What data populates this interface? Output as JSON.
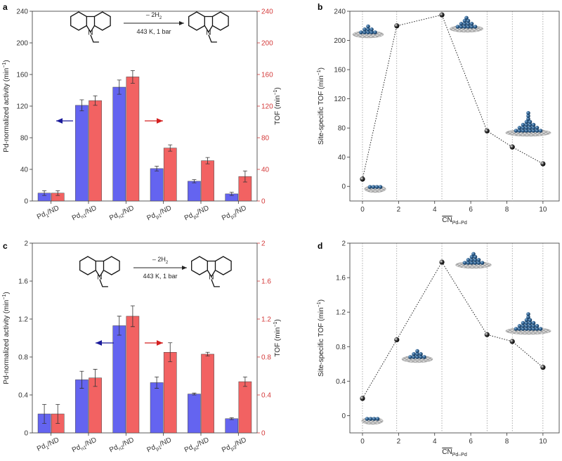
{
  "colors": {
    "blue": "#6464f0",
    "red": "#f26262",
    "red_axis": "#d43a3a",
    "arrow_blue": "#1a1a9a",
    "arrow_red": "#d42020",
    "cluster": "#2a5a88",
    "graphene": "#a8a8a8"
  },
  "chart_data": [
    {
      "id": "a",
      "panel_label": "a",
      "type": "bar",
      "categories": [
        "Pd1/ND",
        "Pdn1/ND",
        "Pdn2/ND",
        "Pdp1/ND",
        "Pdp2/ND",
        "Pdp3/ND"
      ],
      "category_labels": [
        {
          "base": "Pd",
          "sub": "1",
          "suffix": "/ND"
        },
        {
          "base": "Pd",
          "sub": "n1",
          "suffix": "/ND"
        },
        {
          "base": "Pd",
          "sub": "n2",
          "suffix": "/ND"
        },
        {
          "base": "Pd",
          "sub": "p1",
          "suffix": "/ND"
        },
        {
          "base": "Pd",
          "sub": "p2",
          "suffix": "/ND"
        },
        {
          "base": "Pd",
          "sub": "p3",
          "suffix": "/ND"
        }
      ],
      "series": [
        {
          "axis": "left",
          "color": "#6464f0",
          "values": [
            10,
            121,
            144,
            41,
            25,
            9
          ],
          "errors": [
            3,
            7,
            9,
            3,
            2,
            2
          ]
        },
        {
          "axis": "right",
          "color": "#f26262",
          "values": [
            10,
            127,
            157,
            67,
            51,
            31
          ],
          "errors": [
            3,
            6,
            8,
            4,
            4,
            7
          ]
        }
      ],
      "ylim": [
        0,
        240
      ],
      "yticks": [
        "0",
        "40",
        "80",
        "120",
        "160",
        "200",
        "240"
      ],
      "ylabel": {
        "text": "Pd-normalized activity (min",
        "sup": "−1",
        "close": ")"
      },
      "y2label": {
        "text": "TOF (min",
        "sup": "−1",
        "close": ")"
      },
      "reaction": {
        "reagent": "– 2H",
        "reagent_sub": "2",
        "conditions": "443 K, 1 bar"
      }
    },
    {
      "id": "b",
      "panel_label": "b",
      "type": "scatter",
      "x": [
        0,
        1.9,
        4.4,
        6.9,
        8.3,
        10
      ],
      "y": [
        10,
        220,
        235,
        76,
        54,
        31
      ],
      "xlim": [
        -0.7,
        10.9
      ],
      "ylim": [
        -20,
        240
      ],
      "xticks": [
        "0",
        "2",
        "4",
        "6",
        "8",
        "10"
      ],
      "yticks": [
        "0",
        "40",
        "80",
        "120",
        "160",
        "200",
        "240"
      ],
      "ylabel": {
        "text": "Site-specific TOF (min",
        "sup": "−1",
        "close": ")"
      },
      "xlabel": {
        "text": "CN",
        "sub": "Pd–Pd"
      }
    },
    {
      "id": "c",
      "panel_label": "c",
      "type": "bar",
      "categories": [
        "Pd1/ND",
        "Pdn1/ND",
        "Pdn2/ND",
        "Pdp1/ND",
        "Pdp2/ND",
        "Pdp3/ND"
      ],
      "category_labels": [
        {
          "base": "Pd",
          "sub": "1",
          "suffix": "/ND"
        },
        {
          "base": "Pd",
          "sub": "n1",
          "suffix": "/ND"
        },
        {
          "base": "Pd",
          "sub": "n2",
          "suffix": "/ND"
        },
        {
          "base": "Pd",
          "sub": "p1",
          "suffix": "/ND"
        },
        {
          "base": "Pd",
          "sub": "p2",
          "suffix": "/ND"
        },
        {
          "base": "Pd",
          "sub": "p3",
          "suffix": "/ND"
        }
      ],
      "series": [
        {
          "axis": "left",
          "color": "#6464f0",
          "values": [
            0.2,
            0.56,
            1.13,
            0.53,
            0.41,
            0.15
          ],
          "errors": [
            0.1,
            0.09,
            0.1,
            0.06,
            0.01,
            0.01
          ]
        },
        {
          "axis": "right",
          "color": "#f26262",
          "values": [
            0.2,
            0.58,
            1.23,
            0.85,
            0.83,
            0.54
          ],
          "errors": [
            0.1,
            0.09,
            0.11,
            0.1,
            0.02,
            0.05
          ]
        }
      ],
      "ylim": [
        0,
        2
      ],
      "yticks": [
        "0",
        "0.4",
        "0.8",
        "1.2",
        "1.6",
        "2"
      ],
      "ylabel": {
        "text": "Pd-normalized activity (min",
        "sup": "−1",
        "close": ")"
      },
      "y2label": {
        "text": "TOF (min",
        "sup": "−1",
        "close": ")"
      },
      "reaction": {
        "reagent": "– 2H",
        "reagent_sub": "2",
        "conditions": "443 K, 1 bar"
      }
    },
    {
      "id": "d",
      "panel_label": "d",
      "type": "scatter",
      "x": [
        0,
        1.9,
        4.4,
        6.9,
        8.3,
        10
      ],
      "y": [
        0.2,
        0.88,
        1.78,
        0.94,
        0.86,
        0.56
      ],
      "xlim": [
        -0.7,
        10.9
      ],
      "ylim": [
        -0.2,
        2.0
      ],
      "xticks": [
        "0",
        "2",
        "4",
        "6",
        "8",
        "10"
      ],
      "yticks": [
        "0",
        "0.4",
        "0.8",
        "1.2",
        "1.6",
        "2"
      ],
      "ylabel": {
        "text": "Site-specific TOF (min",
        "sup": "−1",
        "close": ")"
      },
      "xlabel": {
        "text": "CN",
        "sub": "Pd–Pd"
      }
    }
  ]
}
